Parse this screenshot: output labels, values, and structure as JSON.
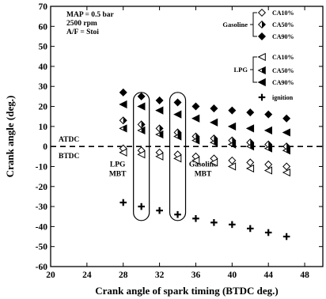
{
  "chart_data": {
    "type": "scatter",
    "xlabel": "Crank angle of spark timing (BTDC deg.)",
    "ylabel": "Crank angle (deg.)",
    "xlim": [
      20,
      50
    ],
    "ylim": [
      -60,
      70
    ],
    "x_ticks": [
      20,
      24,
      28,
      32,
      36,
      40,
      44,
      48
    ],
    "y_ticks": [
      -60,
      -50,
      -40,
      -30,
      -20,
      -10,
      0,
      10,
      20,
      30,
      40,
      50,
      60,
      70
    ],
    "grid": false,
    "conditions": [
      "MAP = 0.5 bar",
      "2500 rpm",
      "A/F = Stoi"
    ],
    "tdc_line": {
      "y": 0,
      "above_label": "ATDC",
      "below_label": "BTDC"
    },
    "legend_position": "top-right",
    "legend_groups": [
      {
        "name": "Gasoline",
        "entries": [
          "CA10%",
          "CA50%",
          "CA90%"
        ]
      },
      {
        "name": "LPG",
        "entries": [
          "CA10%",
          "CA50%",
          "CA90%"
        ]
      }
    ],
    "series": [
      {
        "name": "CA10%",
        "group": "Gasoline",
        "marker": "diamond-open",
        "x": [
          28,
          30,
          32,
          34,
          36,
          38,
          40,
          42,
          44,
          46
        ],
        "y": [
          -1,
          -2,
          -3,
          -4,
          -5,
          -6,
          -7,
          -8,
          -9,
          -10
        ]
      },
      {
        "name": "CA50%",
        "group": "Gasoline",
        "marker": "diamond-half",
        "x": [
          28,
          30,
          32,
          34,
          36,
          38,
          40,
          42,
          44,
          46
        ],
        "y": [
          13,
          11,
          9,
          7,
          5,
          4,
          3,
          2,
          1,
          0
        ]
      },
      {
        "name": "CA90%",
        "group": "Gasoline",
        "marker": "diamond-filled",
        "x": [
          28,
          30,
          32,
          34,
          36,
          38,
          40,
          42,
          44,
          46
        ],
        "y": [
          27,
          25,
          23,
          22,
          20,
          19,
          18,
          17,
          16,
          14
        ]
      },
      {
        "name": "CA10%",
        "group": "LPG",
        "marker": "triangle-open",
        "x": [
          28,
          30,
          32,
          34,
          36,
          38,
          40,
          42,
          44,
          46
        ],
        "y": [
          -3,
          -4,
          -5,
          -6,
          -7,
          -8,
          -10,
          -11,
          -12,
          -13
        ]
      },
      {
        "name": "CA50%",
        "group": "LPG",
        "marker": "triangle-half",
        "x": [
          28,
          30,
          32,
          34,
          36,
          38,
          40,
          42,
          44,
          46
        ],
        "y": [
          9,
          8,
          6,
          5,
          3,
          2,
          1,
          0,
          -1,
          -2
        ]
      },
      {
        "name": "CA90%",
        "group": "LPG",
        "marker": "triangle-filled",
        "x": [
          28,
          30,
          32,
          34,
          36,
          38,
          40,
          42,
          44,
          46
        ],
        "y": [
          21,
          20,
          18,
          16,
          14,
          12,
          10,
          9,
          8,
          7
        ]
      },
      {
        "name": "ignition",
        "marker": "plus",
        "x": [
          28,
          30,
          32,
          34,
          36,
          38,
          40,
          42,
          44,
          46
        ],
        "y": [
          -28,
          -30,
          -32,
          -34,
          -36,
          -38,
          -39,
          -41,
          -43,
          -45
        ]
      }
    ],
    "annotations": [
      {
        "lines": [
          "LPG",
          "MBT"
        ],
        "x_data": 30
      },
      {
        "lines": [
          "Gasoline",
          "MBT"
        ],
        "x_data": 34
      }
    ]
  }
}
